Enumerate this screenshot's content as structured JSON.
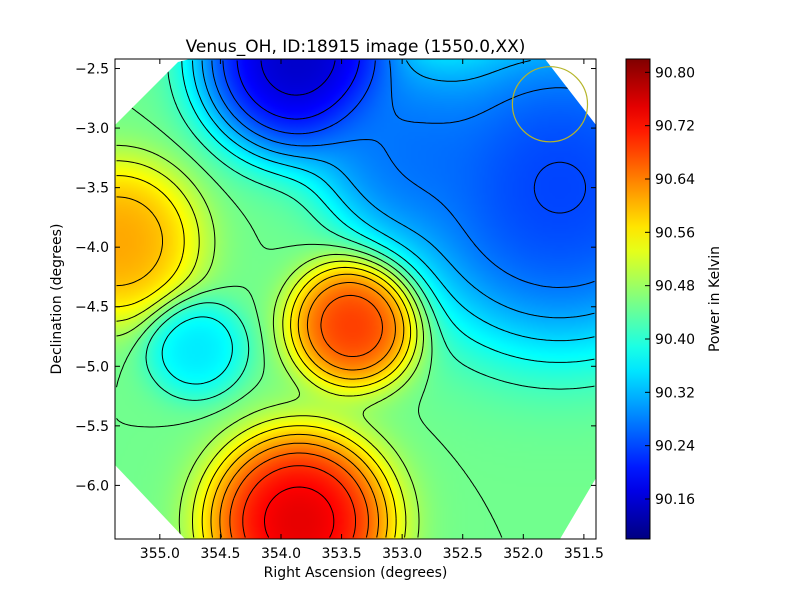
{
  "chart_data": {
    "type": "heatmap",
    "title": "Venus_OH, ID:18915 image (1550.0,XX)",
    "xlabel": "Right Ascension (degrees)",
    "ylabel": "Declination (degrees)",
    "xlim": [
      355.37,
      351.4
    ],
    "ylim": [
      -6.45,
      -2.42
    ],
    "x_ticks": [
      355.0,
      354.5,
      354.0,
      353.5,
      353.0,
      352.5,
      352.0,
      351.5
    ],
    "x_tick_labels": [
      "355.0",
      "354.5",
      "354.0",
      "353.5",
      "353.0",
      "352.5",
      "352.0",
      "351.5"
    ],
    "y_ticks": [
      -2.5,
      -3.0,
      -3.5,
      -4.0,
      -4.5,
      -5.0,
      -5.5,
      -6.0
    ],
    "y_tick_labels": [
      "−2.5",
      "−3.0",
      "−3.5",
      "−4.0",
      "−4.5",
      "−5.0",
      "−5.5",
      "−6.0"
    ],
    "grid": false,
    "colormap": "jet",
    "colorbar": {
      "label": "Power in Kelvin",
      "range": [
        90.1,
        90.82
      ],
      "ticks": [
        90.16,
        90.24,
        90.32,
        90.4,
        90.48,
        90.56,
        90.64,
        90.72,
        90.8
      ],
      "tick_labels": [
        "90.16",
        "90.24",
        "90.32",
        "90.40",
        "90.48",
        "90.56",
        "90.64",
        "90.72",
        "90.80"
      ]
    },
    "contours": true,
    "beam_circle": {
      "ra": 351.78,
      "dec": -2.8,
      "radius_deg": 0.31,
      "color": "#b5b52a"
    },
    "map_features": [
      {
        "ra": 353.85,
        "dec": -2.42,
        "value": 90.1,
        "width": 0.55
      },
      {
        "ra": 353.85,
        "dec": -6.3,
        "value": 90.8,
        "width": 0.5
      },
      {
        "ra": 353.4,
        "dec": -4.65,
        "value": 90.73,
        "width": 0.35
      },
      {
        "ra": 355.35,
        "dec": -3.95,
        "value": 90.64,
        "width": 0.45
      },
      {
        "ra": 354.7,
        "dec": -4.85,
        "value": 90.34,
        "width": 0.28
      },
      {
        "ra": 351.7,
        "dec": -3.5,
        "value": 90.2,
        "width": 0.9
      },
      {
        "ra": 352.95,
        "dec": -3.2,
        "value": 90.25,
        "width": 0.5
      }
    ]
  }
}
